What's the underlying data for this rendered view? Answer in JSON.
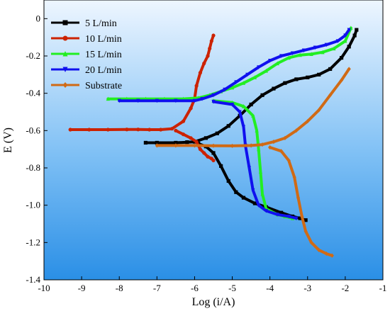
{
  "chart_data": {
    "type": "line",
    "xlabel": "Log (i/A)",
    "ylabel": "E (V)",
    "xlim": [
      -10,
      -1
    ],
    "ylim": [
      -1.4,
      0.1
    ],
    "xticks": [
      "-10",
      "-9",
      "-8",
      "-7",
      "-6",
      "-5",
      "-4",
      "-3",
      "-2",
      "-1"
    ],
    "yticks": [
      "0",
      "-0.2",
      "-0.4",
      "-0.6",
      "-0.8",
      "-1.0",
      "-1.2",
      "-1.4"
    ],
    "ytick_values": [
      0,
      -0.2,
      -0.4,
      -0.6,
      -0.8,
      -1.0,
      -1.2,
      -1.4
    ],
    "legend_position": "top-left",
    "background": "gradient light-blue",
    "series": [
      {
        "name": "5  L/min",
        "color": "#000000",
        "marker": "square",
        "points": [
          [
            -7.3,
            -0.665
          ],
          [
            -7.0,
            -0.665
          ],
          [
            -6.5,
            -0.665
          ],
          [
            -6.2,
            -0.662
          ],
          [
            -6.0,
            -0.66
          ],
          [
            -5.7,
            -0.64
          ],
          [
            -5.4,
            -0.615
          ],
          [
            -5.1,
            -0.575
          ],
          [
            -4.8,
            -0.52
          ],
          [
            -4.5,
            -0.46
          ],
          [
            -4.2,
            -0.41
          ],
          [
            -3.9,
            -0.375
          ],
          [
            -3.6,
            -0.345
          ],
          [
            -3.3,
            -0.325
          ],
          [
            -3.0,
            -0.315
          ],
          [
            -2.7,
            -0.3
          ],
          [
            -2.4,
            -0.27
          ],
          [
            -2.1,
            -0.21
          ],
          [
            -1.9,
            -0.15
          ],
          [
            -1.75,
            -0.09
          ],
          [
            -1.7,
            -0.06
          ],
          [
            -5.9,
            -0.67
          ],
          [
            -5.7,
            -0.685
          ],
          [
            -5.5,
            -0.72
          ],
          [
            -5.3,
            -0.79
          ],
          [
            -5.1,
            -0.87
          ],
          [
            -4.9,
            -0.93
          ],
          [
            -4.7,
            -0.96
          ],
          [
            -4.4,
            -0.99
          ],
          [
            -4.1,
            -1.01
          ],
          [
            -3.7,
            -1.04
          ],
          [
            -3.4,
            -1.06
          ],
          [
            -3.2,
            -1.07
          ],
          [
            -3.05,
            -1.08
          ]
        ]
      },
      {
        "name": "10 L/min",
        "color": "#cc2200",
        "marker": "circle",
        "points": [
          [
            -9.3,
            -0.595
          ],
          [
            -8.8,
            -0.595
          ],
          [
            -8.3,
            -0.595
          ],
          [
            -7.8,
            -0.594
          ],
          [
            -7.5,
            -0.594
          ],
          [
            -7.2,
            -0.595
          ],
          [
            -6.9,
            -0.595
          ],
          [
            -6.6,
            -0.59
          ],
          [
            -6.3,
            -0.55
          ],
          [
            -6.1,
            -0.48
          ],
          [
            -6.0,
            -0.43
          ],
          [
            -5.95,
            -0.36
          ],
          [
            -5.85,
            -0.29
          ],
          [
            -5.75,
            -0.24
          ],
          [
            -5.65,
            -0.2
          ],
          [
            -5.6,
            -0.16
          ],
          [
            -5.55,
            -0.12
          ],
          [
            -5.5,
            -0.09
          ],
          [
            -6.5,
            -0.6
          ],
          [
            -6.3,
            -0.62
          ],
          [
            -6.1,
            -0.64
          ],
          [
            -5.95,
            -0.66
          ],
          [
            -5.85,
            -0.7
          ],
          [
            -5.75,
            -0.72
          ],
          [
            -5.65,
            -0.74
          ],
          [
            -5.55,
            -0.75
          ],
          [
            -5.5,
            -0.76
          ]
        ]
      },
      {
        "name": "15 L/min",
        "color": "#22ee22",
        "marker": "triangle-up",
        "points": [
          [
            -8.3,
            -0.43
          ],
          [
            -7.8,
            -0.43
          ],
          [
            -7.3,
            -0.43
          ],
          [
            -6.8,
            -0.43
          ],
          [
            -6.3,
            -0.43
          ],
          [
            -5.9,
            -0.425
          ],
          [
            -5.6,
            -0.41
          ],
          [
            -5.3,
            -0.39
          ],
          [
            -5.0,
            -0.37
          ],
          [
            -4.7,
            -0.345
          ],
          [
            -4.4,
            -0.315
          ],
          [
            -4.1,
            -0.28
          ],
          [
            -3.8,
            -0.24
          ],
          [
            -3.5,
            -0.21
          ],
          [
            -3.2,
            -0.195
          ],
          [
            -2.9,
            -0.19
          ],
          [
            -2.6,
            -0.18
          ],
          [
            -2.3,
            -0.16
          ],
          [
            -2.0,
            -0.12
          ],
          [
            -1.85,
            -0.05
          ],
          [
            -5.5,
            -0.44
          ],
          [
            -5.0,
            -0.45
          ],
          [
            -4.7,
            -0.47
          ],
          [
            -4.45,
            -0.52
          ],
          [
            -4.35,
            -0.6
          ],
          [
            -4.3,
            -0.7
          ],
          [
            -4.25,
            -0.82
          ],
          [
            -4.2,
            -0.94
          ],
          [
            -4.1,
            -1.02
          ],
          [
            -3.8,
            -1.05
          ],
          [
            -3.6,
            -1.06
          ],
          [
            -3.4,
            -1.07
          ]
        ]
      },
      {
        "name": "20 L/min",
        "color": "#1010ee",
        "marker": "triangle-down",
        "points": [
          [
            -8.0,
            -0.44
          ],
          [
            -7.5,
            -0.44
          ],
          [
            -7.0,
            -0.44
          ],
          [
            -6.5,
            -0.44
          ],
          [
            -6.0,
            -0.44
          ],
          [
            -5.8,
            -0.43
          ],
          [
            -5.5,
            -0.41
          ],
          [
            -5.2,
            -0.38
          ],
          [
            -4.9,
            -0.34
          ],
          [
            -4.6,
            -0.3
          ],
          [
            -4.3,
            -0.26
          ],
          [
            -4.0,
            -0.225
          ],
          [
            -3.7,
            -0.2
          ],
          [
            -3.4,
            -0.185
          ],
          [
            -3.1,
            -0.17
          ],
          [
            -2.8,
            -0.155
          ],
          [
            -2.5,
            -0.14
          ],
          [
            -2.2,
            -0.12
          ],
          [
            -2.0,
            -0.09
          ],
          [
            -1.9,
            -0.06
          ],
          [
            -5.5,
            -0.445
          ],
          [
            -5.0,
            -0.46
          ],
          [
            -4.8,
            -0.5
          ],
          [
            -4.7,
            -0.58
          ],
          [
            -4.65,
            -0.68
          ],
          [
            -4.55,
            -0.8
          ],
          [
            -4.45,
            -0.92
          ],
          [
            -4.3,
            -1.0
          ],
          [
            -4.1,
            -1.03
          ],
          [
            -3.8,
            -1.05
          ],
          [
            -3.5,
            -1.06
          ],
          [
            -3.3,
            -1.07
          ]
        ]
      },
      {
        "name": "Substrate",
        "color": "#d06a15",
        "marker": "diamond",
        "points": [
          [
            -7.0,
            -0.68
          ],
          [
            -6.5,
            -0.68
          ],
          [
            -6.0,
            -0.68
          ],
          [
            -5.5,
            -0.681
          ],
          [
            -5.0,
            -0.682
          ],
          [
            -4.5,
            -0.68
          ],
          [
            -4.2,
            -0.675
          ],
          [
            -3.9,
            -0.66
          ],
          [
            -3.6,
            -0.64
          ],
          [
            -3.3,
            -0.6
          ],
          [
            -3.0,
            -0.55
          ],
          [
            -2.7,
            -0.49
          ],
          [
            -2.4,
            -0.41
          ],
          [
            -2.1,
            -0.33
          ],
          [
            -1.9,
            -0.27
          ],
          [
            -4.0,
            -0.69
          ],
          [
            -3.7,
            -0.71
          ],
          [
            -3.5,
            -0.76
          ],
          [
            -3.35,
            -0.85
          ],
          [
            -3.25,
            -0.96
          ],
          [
            -3.15,
            -1.06
          ],
          [
            -3.05,
            -1.14
          ],
          [
            -2.9,
            -1.2
          ],
          [
            -2.7,
            -1.24
          ],
          [
            -2.5,
            -1.26
          ],
          [
            -2.35,
            -1.27
          ]
        ]
      }
    ]
  }
}
